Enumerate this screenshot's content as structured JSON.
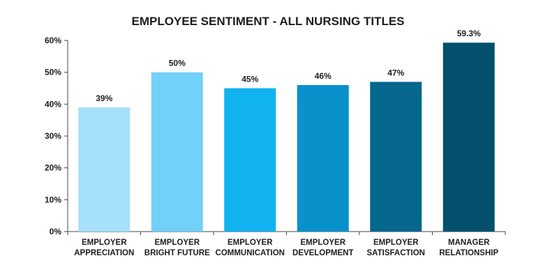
{
  "chart_data": {
    "type": "bar",
    "title": "EMPLOYEE SENTIMENT - ALL NURSING TITLES",
    "xlabel": "",
    "ylabel": "",
    "categories": [
      [
        "EMPLOYER",
        "APPRECIATION"
      ],
      [
        "EMPLOYER",
        "BRIGHT FUTURE"
      ],
      [
        "EMPLOYER",
        "COMMUNICATION"
      ],
      [
        "EMPLOYER",
        "DEVELOPMENT"
      ],
      [
        "EMPLOYER",
        "SATISFACTION"
      ],
      [
        "MANAGER",
        "RELATIONSHIP"
      ]
    ],
    "values": [
      39,
      50,
      45,
      46,
      47,
      59.3
    ],
    "data_labels": [
      "39%",
      "50%",
      "45%",
      "46%",
      "47%",
      "59.3%"
    ],
    "colors": [
      "#a6e0fa",
      "#72d1f9",
      "#10b2f0",
      "#0991cc",
      "#05668e",
      "#034f6c"
    ],
    "ylim": [
      0,
      60
    ],
    "yticks": [
      0,
      10,
      20,
      30,
      40,
      50,
      60
    ],
    "ytick_labels": [
      "0%",
      "10%",
      "20%",
      "30%",
      "40%",
      "50%",
      "60%"
    ],
    "grid": false,
    "legend": "none"
  }
}
